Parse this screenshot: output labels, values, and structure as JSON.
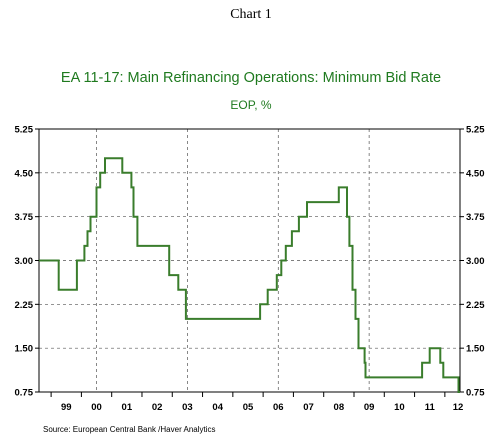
{
  "header": {
    "chart_label": "Chart 1"
  },
  "source": "Source:  European Central Bank /Haver Analytics",
  "chart_data": {
    "type": "line",
    "title": "EA 11-17: Main Refinancing Operations: Minimum Bid Rate",
    "subtitle": "EOP, %",
    "xlabel": "",
    "ylabel": "",
    "xlim": [
      1998.6,
      2012.5
    ],
    "ylim": [
      0.75,
      5.25
    ],
    "yticks": [
      0.75,
      1.5,
      2.25,
      3.0,
      3.75,
      4.5,
      5.25
    ],
    "ytick_labels": [
      "0.75",
      "1.50",
      "2.25",
      "3.00",
      "3.75",
      "4.50",
      "5.25"
    ],
    "xtick_labels": [
      {
        "label": "99",
        "x": 1999.5
      },
      {
        "label": "00",
        "x": 2000.5
      },
      {
        "label": "01",
        "x": 2001.5
      },
      {
        "label": "02",
        "x": 2002.5
      },
      {
        "label": "03",
        "x": 2003.5
      },
      {
        "label": "04",
        "x": 2004.5
      },
      {
        "label": "05",
        "x": 2005.5
      },
      {
        "label": "06",
        "x": 2006.5
      },
      {
        "label": "07",
        "x": 2007.5
      },
      {
        "label": "08",
        "x": 2008.5
      },
      {
        "label": "09",
        "x": 2009.5
      },
      {
        "label": "10",
        "x": 2010.5
      },
      {
        "label": "11",
        "x": 2011.5
      },
      {
        "label": "12",
        "x": 2012.5
      }
    ],
    "grid_x": [
      2000.5,
      2003.5,
      2006.5,
      2009.5
    ],
    "grid_y": true,
    "legend": "none",
    "series": [
      {
        "color": "#3a7d2c",
        "step": true,
        "points": [
          [
            1998.6,
            3.0
          ],
          [
            1999.25,
            2.5
          ],
          [
            1999.85,
            3.0
          ],
          [
            2000.1,
            3.25
          ],
          [
            2000.2,
            3.5
          ],
          [
            2000.3,
            3.75
          ],
          [
            2000.5,
            4.25
          ],
          [
            2000.62,
            4.5
          ],
          [
            2000.78,
            4.75
          ],
          [
            2001.35,
            4.5
          ],
          [
            2001.65,
            4.25
          ],
          [
            2001.72,
            3.75
          ],
          [
            2001.85,
            3.25
          ],
          [
            2002.9,
            2.75
          ],
          [
            2003.2,
            2.5
          ],
          [
            2003.45,
            2.0
          ],
          [
            2005.9,
            2.25
          ],
          [
            2006.15,
            2.5
          ],
          [
            2006.45,
            2.75
          ],
          [
            2006.6,
            3.0
          ],
          [
            2006.75,
            3.25
          ],
          [
            2006.95,
            3.5
          ],
          [
            2007.18,
            3.75
          ],
          [
            2007.45,
            4.0
          ],
          [
            2008.5,
            4.25
          ],
          [
            2008.77,
            3.75
          ],
          [
            2008.85,
            3.25
          ],
          [
            2008.95,
            2.5
          ],
          [
            2009.05,
            2.0
          ],
          [
            2009.15,
            1.5
          ],
          [
            2009.35,
            1.25
          ],
          [
            2009.38,
            1.0
          ],
          [
            2011.25,
            1.25
          ],
          [
            2011.5,
            1.5
          ],
          [
            2011.85,
            1.25
          ],
          [
            2011.95,
            1.0
          ],
          [
            2012.45,
            0.75
          ],
          [
            2012.5,
            0.75
          ]
        ]
      }
    ]
  }
}
